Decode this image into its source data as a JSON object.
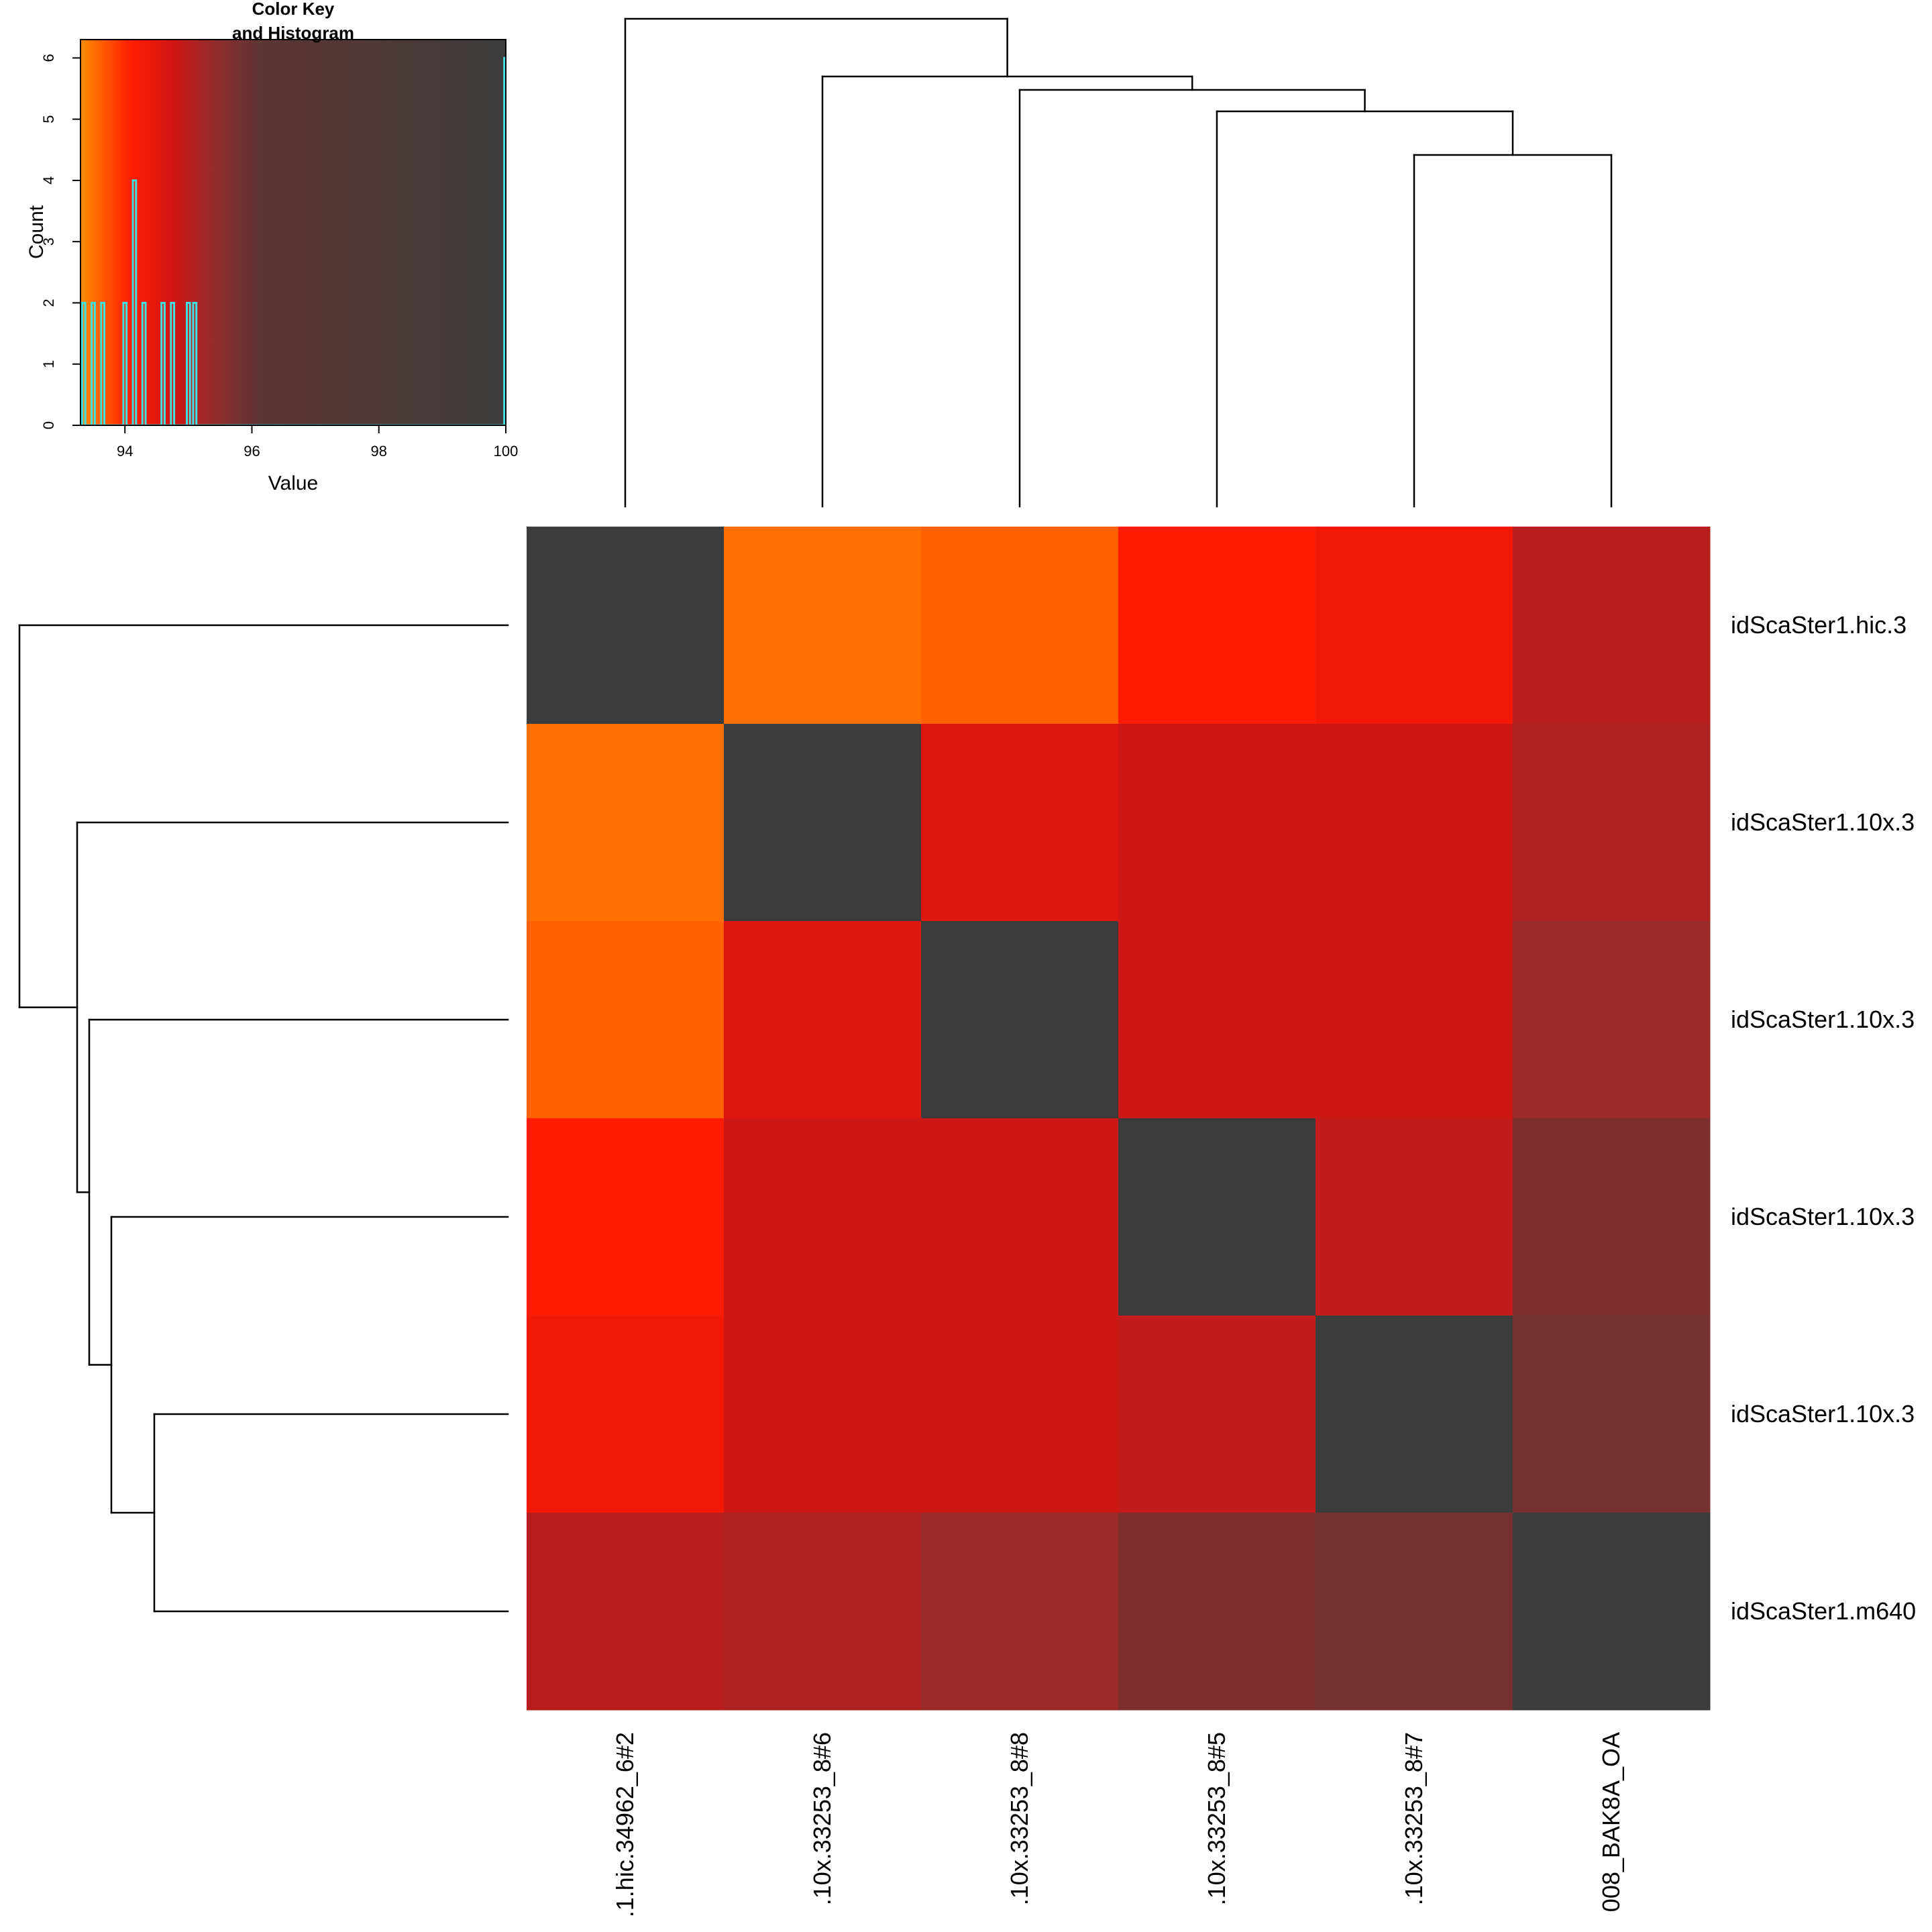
{
  "chart_data": [
    {
      "type": "heatmap",
      "title": "",
      "columns": [
        ".1.hic.34962_6#2",
        ".10x.33253_8#6",
        ".10x.33253_8#8",
        ".10x.33253_8#5",
        ".10x.33253_8#7",
        "008_BAK8A_OA"
      ],
      "rows": [
        "idScaSter1.hic.3",
        "idScaSter1.10x.3",
        "idScaSter1.10x.3",
        "idScaSter1.10x.3",
        "idScaSter1.10x.3",
        "idScaSter1.m640"
      ],
      "values": [
        [
          100,
          93.5,
          93.6,
          94.1,
          94.3,
          95.0
        ],
        [
          93.5,
          100,
          94.6,
          94.8,
          94.8,
          95.1
        ],
        [
          93.6,
          94.6,
          100,
          94.8,
          94.8,
          95.3
        ],
        [
          94.1,
          94.8,
          94.8,
          100,
          94.9,
          95.7
        ],
        [
          94.3,
          94.8,
          94.8,
          94.9,
          100,
          95.8
        ],
        [
          95.0,
          95.1,
          95.3,
          95.7,
          95.8,
          100
        ]
      ],
      "value_range": [
        93.3,
        100
      ],
      "colors": {
        "stops": [
          "#ff8c00",
          "#ff1a00",
          "#d01616",
          "#9a2a2a",
          "#5e3535",
          "#3c3c3c"
        ],
        "dendrogram": "#000000",
        "histogram_line": "#40e0e0"
      },
      "column_dendrogram": true,
      "row_dendrogram": true
    },
    {
      "type": "bar",
      "title": "Color Key\nand Histogram",
      "title_lines": [
        "Color Key",
        "and Histogram"
      ],
      "xlabel": "Value",
      "ylabel": "Count",
      "xlim": [
        93.3,
        100
      ],
      "ylim": [
        0,
        6.3
      ],
      "xticks": [
        "94",
        "96",
        "98",
        "100"
      ],
      "yticks": [
        "0",
        "1",
        "2",
        "3",
        "4",
        "5",
        "6"
      ],
      "bins": [
        {
          "x": 93.35,
          "count": 2
        },
        {
          "x": 93.5,
          "count": 2
        },
        {
          "x": 93.65,
          "count": 2
        },
        {
          "x": 94.0,
          "count": 2
        },
        {
          "x": 94.15,
          "count": 4
        },
        {
          "x": 94.3,
          "count": 2
        },
        {
          "x": 94.6,
          "count": 2
        },
        {
          "x": 94.75,
          "count": 2
        },
        {
          "x": 95.0,
          "count": 2
        },
        {
          "x": 95.1,
          "count": 2
        },
        {
          "x": 100,
          "count": 6
        }
      ]
    }
  ]
}
